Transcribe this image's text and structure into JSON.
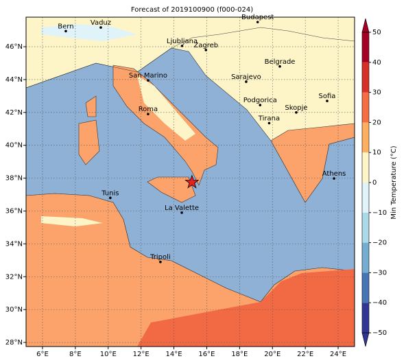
{
  "chart_data": {
    "type": "map",
    "title": "Forecast of 2019100900 (f000-024)",
    "xlim": [
      5,
      25
    ],
    "ylim": [
      27.75,
      47.8
    ],
    "xticks": [
      {
        "value": 6,
        "label": "6°E"
      },
      {
        "value": 8,
        "label": "8°E"
      },
      {
        "value": 10,
        "label": "10°E"
      },
      {
        "value": 12,
        "label": "12°E"
      },
      {
        "value": 14,
        "label": "14°E"
      },
      {
        "value": 16,
        "label": "16°E"
      },
      {
        "value": 18,
        "label": "18°E"
      },
      {
        "value": 20,
        "label": "20°E"
      },
      {
        "value": 22,
        "label": "22°E"
      },
      {
        "value": 24,
        "label": "24°E"
      }
    ],
    "yticks": [
      {
        "value": 28,
        "label": "28°N"
      },
      {
        "value": 30,
        "label": "30°N"
      },
      {
        "value": 32,
        "label": "32°N"
      },
      {
        "value": 34,
        "label": "34°N"
      },
      {
        "value": 36,
        "label": "36°N"
      },
      {
        "value": 38,
        "label": "38°N"
      },
      {
        "value": 40,
        "label": "40°N"
      },
      {
        "value": 42,
        "label": "42°N"
      },
      {
        "value": 44,
        "label": "44°N"
      },
      {
        "value": 46,
        "label": "46°N"
      }
    ],
    "grid": true,
    "cities": [
      {
        "name": "Bern",
        "lon": 7.42,
        "lat": 46.95
      },
      {
        "name": "Vaduz",
        "lon": 9.55,
        "lat": 47.17
      },
      {
        "name": "Budapest",
        "lon": 19.1,
        "lat": 47.5
      },
      {
        "name": "Ljubljana",
        "lon": 14.5,
        "lat": 46.05
      },
      {
        "name": "Zagreb",
        "lon": 15.95,
        "lat": 45.8
      },
      {
        "name": "Belgrade",
        "lon": 20.45,
        "lat": 44.8
      },
      {
        "name": "San Marino",
        "lon": 12.43,
        "lat": 43.95
      },
      {
        "name": "Sarajevo",
        "lon": 18.4,
        "lat": 43.87
      },
      {
        "name": "Sofia",
        "lon": 23.33,
        "lat": 42.7
      },
      {
        "name": "Roma",
        "lon": 12.43,
        "lat": 41.9
      },
      {
        "name": "Podgorica",
        "lon": 19.25,
        "lat": 42.45
      },
      {
        "name": "Skopje",
        "lon": 21.45,
        "lat": 42.0
      },
      {
        "name": "Tirana",
        "lon": 19.8,
        "lat": 41.35
      },
      {
        "name": "Athens",
        "lon": 23.75,
        "lat": 37.98
      },
      {
        "name": "Tunis",
        "lon": 10.13,
        "lat": 36.8
      },
      {
        "name": "La Valette",
        "lon": 14.48,
        "lat": 35.9
      },
      {
        "name": "Tripoli",
        "lon": 13.18,
        "lat": 32.9
      }
    ],
    "marker": {
      "lon": 15.1,
      "lat": 37.75,
      "color": "#e8231c"
    },
    "colorbar": {
      "label": "Min Temperature (°C)",
      "clim": [
        -50,
        50
      ],
      "colors": [
        "#313695",
        "#4575b4",
        "#74add1",
        "#abd9e9",
        "#e0f3f8",
        "#fdf5c8",
        "#fdae61",
        "#f46d43",
        "#d73027",
        "#a50026"
      ],
      "ticks": [
        {
          "value": -50,
          "label": "−50"
        },
        {
          "value": -40,
          "label": "−40"
        },
        {
          "value": -30,
          "label": "−30"
        },
        {
          "value": -20,
          "label": "−20"
        },
        {
          "value": -10,
          "label": "−10"
        },
        0,
        10,
        20,
        30,
        40,
        50
      ]
    }
  }
}
